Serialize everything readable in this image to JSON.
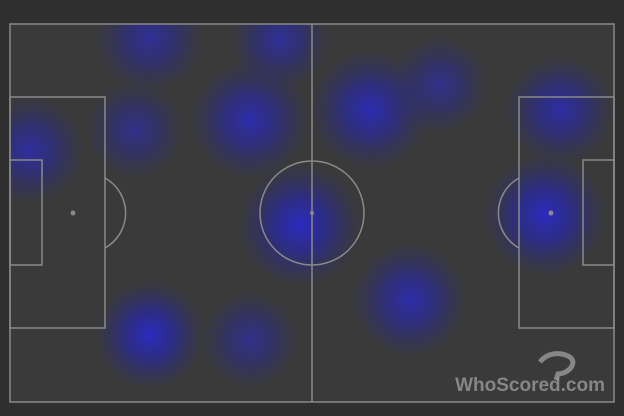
{
  "watermark": {
    "text": "WhoScored.com"
  }
}
